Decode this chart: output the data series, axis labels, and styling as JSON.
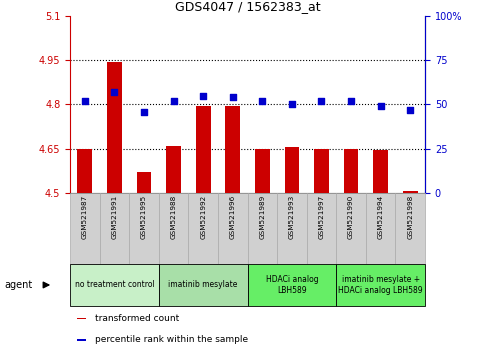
{
  "title": "GDS4047 / 1562383_at",
  "samples": [
    "GSM521987",
    "GSM521991",
    "GSM521995",
    "GSM521988",
    "GSM521992",
    "GSM521996",
    "GSM521989",
    "GSM521993",
    "GSM521997",
    "GSM521990",
    "GSM521994",
    "GSM521998"
  ],
  "bar_values": [
    4.65,
    4.945,
    4.57,
    4.66,
    4.795,
    4.795,
    4.65,
    4.655,
    4.65,
    4.65,
    4.645,
    4.505
  ],
  "scatter_values": [
    52,
    57,
    46,
    52,
    55,
    54,
    52,
    50,
    52,
    52,
    49,
    47
  ],
  "ylim_left": [
    4.5,
    5.1
  ],
  "ylim_right": [
    0,
    100
  ],
  "yticks_left": [
    4.5,
    4.65,
    4.8,
    4.95,
    5.1
  ],
  "yticks_right": [
    0,
    25,
    50,
    75,
    100
  ],
  "ytick_labels_left": [
    "4.5",
    "4.65",
    "4.8",
    "4.95",
    "5.1"
  ],
  "ytick_labels_right": [
    "0",
    "25",
    "50",
    "75",
    "100%"
  ],
  "hlines": [
    4.65,
    4.8,
    4.95
  ],
  "bar_color": "#cc0000",
  "scatter_color": "#0000cc",
  "bar_bottom": 4.5,
  "group_spans": [
    [
      0,
      2,
      "no treatment control",
      "#c8f0c8"
    ],
    [
      3,
      5,
      "imatinib mesylate",
      "#a8dfa8"
    ],
    [
      6,
      8,
      "HDACi analog\nLBH589",
      "#66ee66"
    ],
    [
      9,
      11,
      "imatinib mesylate +\nHDACi analog LBH589",
      "#66ee66"
    ]
  ],
  "legend_items": [
    {
      "label": "transformed count",
      "color": "#cc0000"
    },
    {
      "label": "percentile rank within the sample",
      "color": "#0000cc"
    }
  ],
  "agent_label": "agent",
  "grid_dotted_color": "#000000",
  "sample_box_color": "#d0d0d0",
  "sample_box_edge": "#aaaaaa"
}
